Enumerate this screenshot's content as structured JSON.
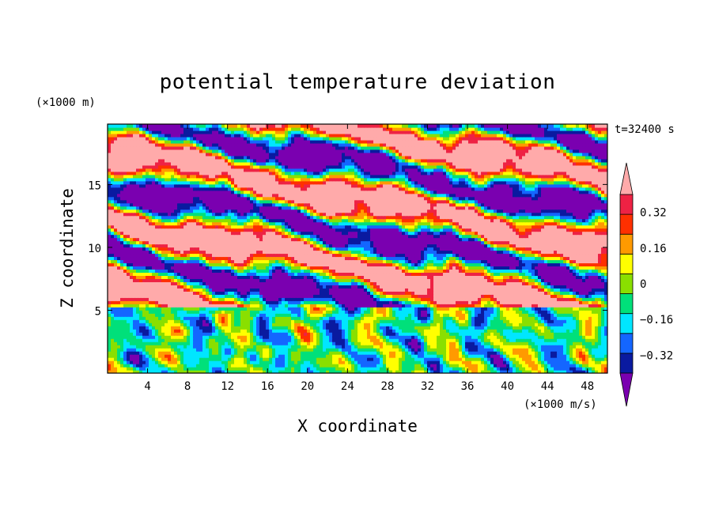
{
  "chart_data": {
    "type": "heatmap",
    "title": "potential temperature deviation",
    "xlabel": "X coordinate",
    "ylabel": "Z coordinate",
    "x_unit": "(×1000 m/s)",
    "y_unit": "(×1000 m)",
    "time_label": "t=32400 s",
    "xlim": [
      0,
      50
    ],
    "ylim": [
      0,
      19.8
    ],
    "x_ticks": [
      4,
      8,
      12,
      16,
      20,
      24,
      28,
      32,
      36,
      40,
      44,
      48
    ],
    "x_tick_labels": [
      "4",
      "8",
      "12",
      "16",
      "20",
      "24",
      "28",
      "32",
      "36",
      "40",
      "44",
      "48"
    ],
    "y_ticks": [
      5,
      10,
      15
    ],
    "y_tick_labels": [
      "5",
      "10",
      "15"
    ],
    "colorbar": {
      "levels": [
        -0.4,
        -0.32,
        -0.24,
        -0.16,
        -0.08,
        0,
        0.08,
        0.16,
        0.24,
        0.32,
        0.4
      ],
      "labels": [
        "0.32",
        "0.16",
        "0",
        "−0.16",
        "−0.32"
      ],
      "label_values": [
        0.32,
        0.16,
        0,
        -0.16,
        -0.32
      ],
      "colors": [
        "#7a00b0",
        "#0a1aa0",
        "#1466ff",
        "#00e6ff",
        "#00e07a",
        "#8adf00",
        "#ffff00",
        "#ff9a00",
        "#ff3000",
        "#ee2244",
        "#ffaaaa"
      ],
      "extend": "both"
    }
  }
}
